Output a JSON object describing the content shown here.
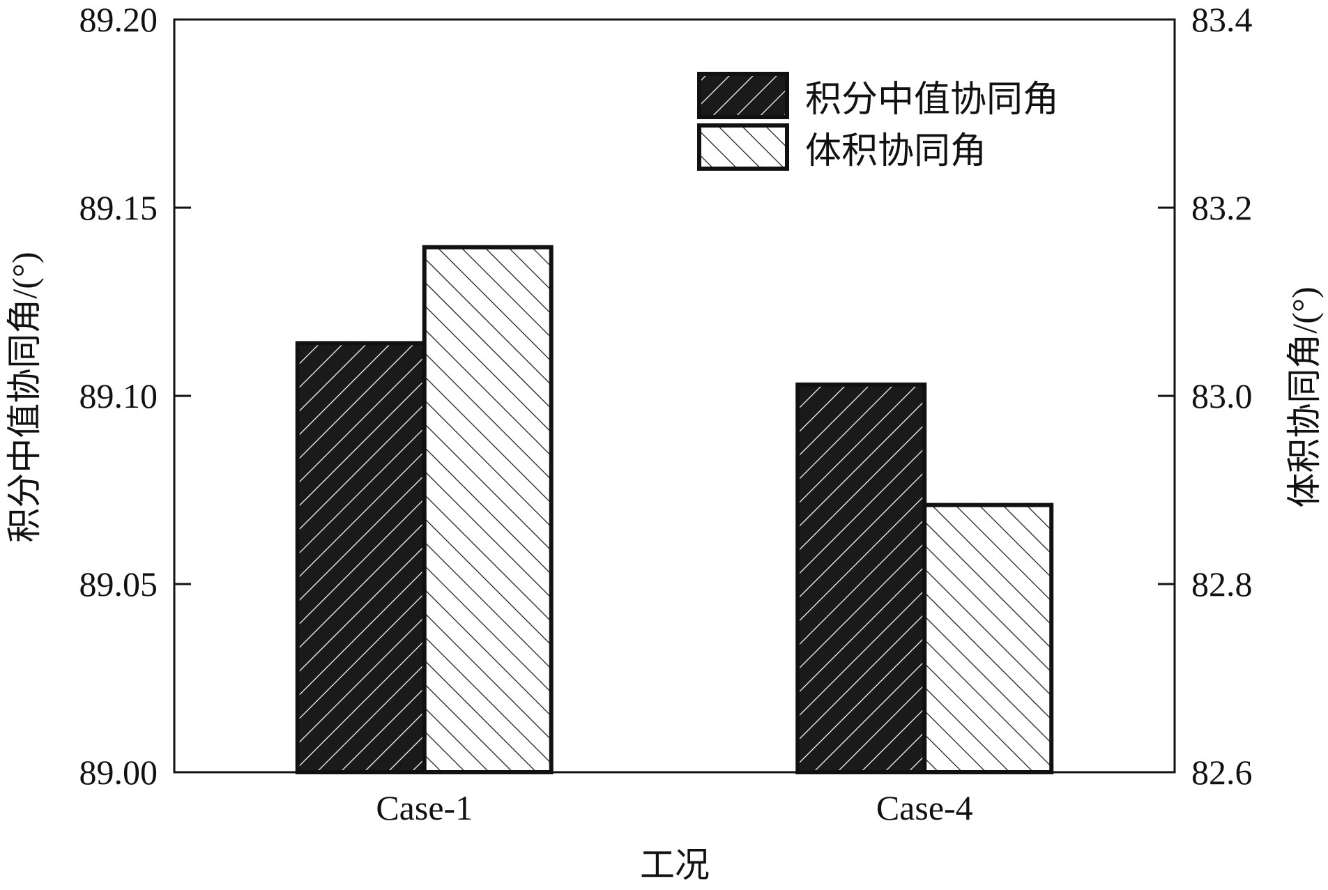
{
  "chart_data": {
    "type": "bar",
    "title": "",
    "xlabel": "工况",
    "categories": [
      "Case-1",
      "Case-4"
    ],
    "series": [
      {
        "name": "积分中值协同角",
        "axis": "left",
        "values": [
          89.114,
          89.103
        ],
        "fill": "#1a1a1a",
        "pattern": "forward-diagonal-hatch"
      },
      {
        "name": "体积协同角",
        "axis": "right",
        "values": [
          83.158,
          82.884
        ],
        "fill": "#ffffff",
        "pattern": "back-diagonal-hatch"
      }
    ],
    "y_left": {
      "label": "积分中值协同角/(°)",
      "ylim": [
        89.0,
        89.2
      ],
      "ticks": [
        "89.00",
        "89.05",
        "89.10",
        "89.15",
        "89.20"
      ]
    },
    "y_right": {
      "label": "体积协同角/(°)",
      "ylim": [
        82.6,
        83.4
      ],
      "ticks": [
        "82.6",
        "82.8",
        "83.0",
        "83.2",
        "83.4"
      ]
    },
    "legend": {
      "placement": "top-right"
    },
    "grid": false
  }
}
